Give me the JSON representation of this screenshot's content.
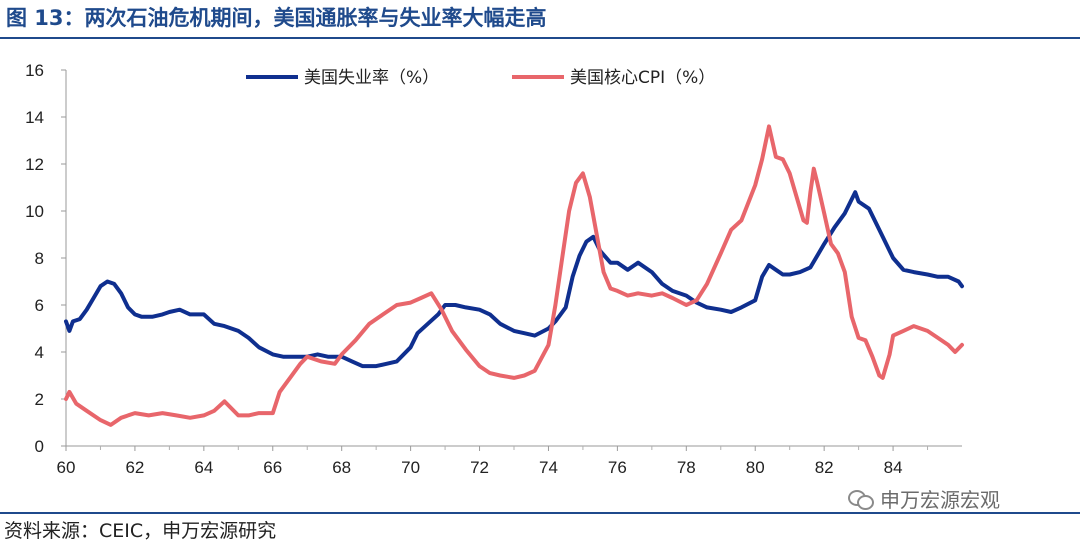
{
  "title": "图 13：两次石油危机期间，美国通胀率与失业率大幅走高",
  "source": "资料来源：CEIC，申万宏源研究",
  "watermark": {
    "text": "申万宏源宏观",
    "icon": "wechat-icon"
  },
  "chart_data": {
    "type": "line",
    "xlim": [
      60,
      86
    ],
    "ylim": [
      0,
      16
    ],
    "x_ticks": [
      60,
      62,
      64,
      66,
      68,
      70,
      72,
      74,
      76,
      78,
      80,
      82,
      84
    ],
    "x_tick_labels": [
      "60",
      "62",
      "64",
      "66",
      "68",
      "70",
      "72",
      "74",
      "76",
      "78",
      "80",
      "82",
      "84"
    ],
    "y_ticks": [
      0,
      2,
      4,
      6,
      8,
      10,
      12,
      14,
      16
    ],
    "y_tick_labels": [
      "0",
      "2",
      "4",
      "6",
      "8",
      "10",
      "12",
      "14",
      "16"
    ],
    "grid": false,
    "legend_position": "top",
    "series": [
      {
        "name": "美国失业率（%）",
        "color": "#0f2f8f",
        "x": [
          60,
          60.1,
          60.2,
          60.4,
          60.6,
          60.8,
          61,
          61.2,
          61.4,
          61.6,
          61.8,
          62,
          62.2,
          62.5,
          62.8,
          63,
          63.3,
          63.6,
          64,
          64.3,
          64.6,
          65,
          65.3,
          65.6,
          66,
          66.3,
          66.6,
          67,
          67.3,
          67.6,
          68,
          68.3,
          68.6,
          69,
          69.3,
          69.6,
          70,
          70.2,
          70.5,
          70.8,
          71,
          71.3,
          71.6,
          72,
          72.3,
          72.6,
          73,
          73.3,
          73.6,
          74,
          74.2,
          74.5,
          74.7,
          74.9,
          75.1,
          75.3,
          75.5,
          75.8,
          76,
          76.3,
          76.6,
          77,
          77.3,
          77.6,
          78,
          78.3,
          78.6,
          79,
          79.3,
          79.6,
          80,
          80.2,
          80.4,
          80.6,
          80.8,
          81,
          81.3,
          81.6,
          82,
          82.3,
          82.6,
          82.9,
          83,
          83.3,
          83.6,
          84,
          84.3,
          84.6,
          85,
          85.3,
          85.6,
          85.9,
          86
        ],
        "values": [
          5.3,
          4.9,
          5.3,
          5.4,
          5.8,
          6.3,
          6.8,
          7.0,
          6.9,
          6.5,
          5.9,
          5.6,
          5.5,
          5.5,
          5.6,
          5.7,
          5.8,
          5.6,
          5.6,
          5.2,
          5.1,
          4.9,
          4.6,
          4.2,
          3.9,
          3.8,
          3.8,
          3.8,
          3.9,
          3.8,
          3.8,
          3.6,
          3.4,
          3.4,
          3.5,
          3.6,
          4.2,
          4.8,
          5.2,
          5.6,
          6.0,
          6.0,
          5.9,
          5.8,
          5.6,
          5.2,
          4.9,
          4.8,
          4.7,
          5.0,
          5.3,
          5.9,
          7.2,
          8.1,
          8.7,
          8.9,
          8.3,
          7.8,
          7.8,
          7.5,
          7.8,
          7.4,
          6.9,
          6.6,
          6.4,
          6.1,
          5.9,
          5.8,
          5.7,
          5.9,
          6.2,
          7.2,
          7.7,
          7.5,
          7.3,
          7.3,
          7.4,
          7.6,
          8.6,
          9.3,
          9.9,
          10.8,
          10.4,
          10.1,
          9.2,
          8.0,
          7.5,
          7.4,
          7.3,
          7.2,
          7.2,
          7.0,
          6.8
        ]
      },
      {
        "name": "美国核心CPI（%）",
        "color": "#e8666b",
        "x": [
          60,
          60.1,
          60.3,
          60.6,
          61,
          61.3,
          61.6,
          62,
          62.4,
          62.8,
          63.2,
          63.6,
          64,
          64.3,
          64.6,
          65,
          65.3,
          65.6,
          66,
          66.2,
          66.5,
          66.8,
          67,
          67.4,
          67.8,
          68,
          68.4,
          68.8,
          69.2,
          69.6,
          70,
          70.3,
          70.6,
          70.9,
          71.2,
          71.6,
          72,
          72.3,
          72.6,
          73,
          73.3,
          73.6,
          74,
          74.2,
          74.4,
          74.6,
          74.8,
          75,
          75.2,
          75.4,
          75.6,
          75.8,
          76,
          76.3,
          76.6,
          77,
          77.3,
          77.6,
          78,
          78.3,
          78.6,
          79,
          79.3,
          79.6,
          80,
          80.2,
          80.4,
          80.6,
          80.8,
          81,
          81.2,
          81.4,
          81.5,
          81.6,
          81.7,
          81.8,
          82,
          82.2,
          82.4,
          82.6,
          82.8,
          83,
          83.2,
          83.4,
          83.6,
          83.7,
          83.9,
          84,
          84.3,
          84.6,
          85,
          85.3,
          85.6,
          85.8,
          86
        ],
        "values": [
          2.0,
          2.3,
          1.8,
          1.5,
          1.1,
          0.9,
          1.2,
          1.4,
          1.3,
          1.4,
          1.3,
          1.2,
          1.3,
          1.5,
          1.9,
          1.3,
          1.3,
          1.4,
          1.4,
          2.3,
          2.9,
          3.5,
          3.8,
          3.6,
          3.5,
          3.9,
          4.5,
          5.2,
          5.6,
          6.0,
          6.1,
          6.3,
          6.5,
          5.8,
          4.9,
          4.1,
          3.4,
          3.1,
          3.0,
          2.9,
          3.0,
          3.2,
          4.3,
          6.0,
          8.0,
          10.0,
          11.2,
          11.6,
          10.6,
          9.0,
          7.4,
          6.7,
          6.6,
          6.4,
          6.5,
          6.4,
          6.5,
          6.3,
          6.0,
          6.2,
          6.9,
          8.2,
          9.2,
          9.6,
          11.1,
          12.2,
          13.6,
          12.3,
          12.2,
          11.6,
          10.6,
          9.6,
          9.5,
          10.8,
          11.8,
          11.2,
          9.9,
          8.6,
          8.2,
          7.4,
          5.5,
          4.6,
          4.5,
          3.8,
          3.0,
          2.9,
          3.9,
          4.7,
          4.9,
          5.1,
          4.9,
          4.6,
          4.3,
          4.0,
          4.3
        ]
      }
    ]
  }
}
